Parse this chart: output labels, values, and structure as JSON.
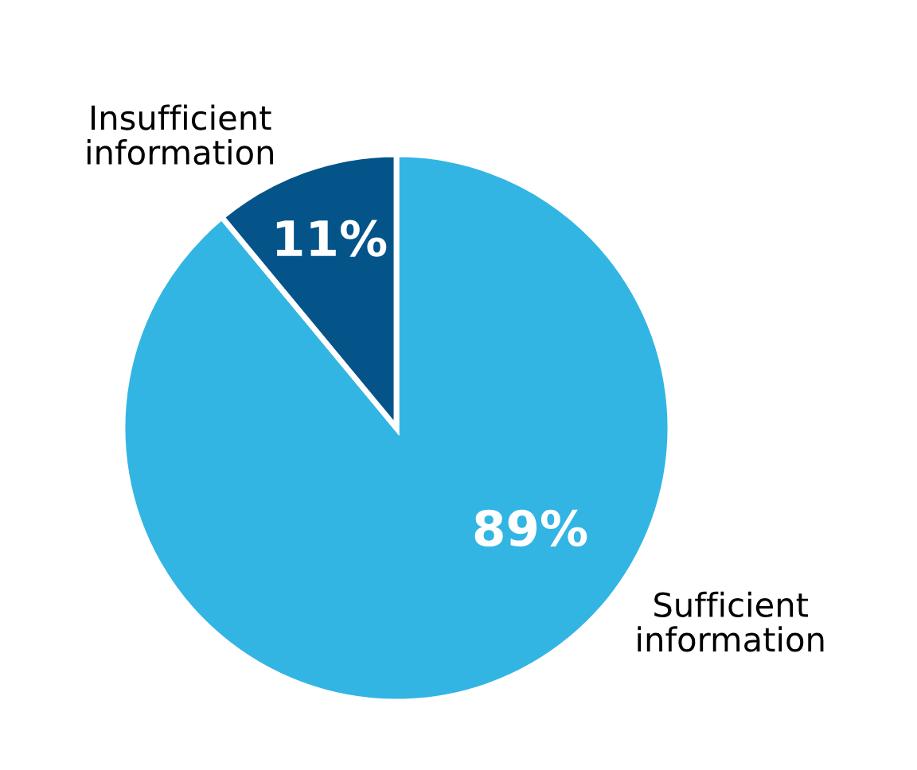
{
  "chart_data": {
    "type": "pie",
    "categories": [
      "Sufficient information",
      "Insufficient information"
    ],
    "values": [
      89,
      11
    ],
    "colors": [
      "#33b5e3",
      "#04548a"
    ],
    "value_labels": [
      "89%",
      "11%"
    ],
    "legend": false
  }
}
